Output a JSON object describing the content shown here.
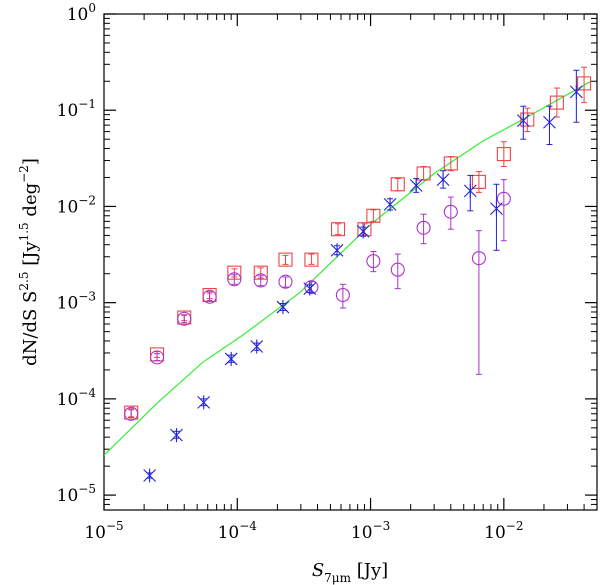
{
  "chart_data": {
    "type": "scatter",
    "title": "",
    "xlabel": {
      "main": "S",
      "sub": "7μm",
      "unit": "[Jy]"
    },
    "ylabel": {
      "p1": "dN/dS  S",
      "exp1": "2.5",
      "p2": "  [Jy",
      "exp2": "1.5",
      "p3": " deg",
      "exp3": "−2",
      "p4": "]"
    },
    "xscale": "log",
    "yscale": "log",
    "xlim": [
      1e-05,
      0.05
    ],
    "ylim": [
      7e-06,
      1.0
    ],
    "x_ticks": [
      {
        "value": 1e-05,
        "base": "10",
        "exp": "−5"
      },
      {
        "value": 0.0001,
        "base": "10",
        "exp": "−4"
      },
      {
        "value": 0.001,
        "base": "10",
        "exp": "−3"
      },
      {
        "value": 0.01,
        "base": "10",
        "exp": "−2"
      }
    ],
    "y_ticks": [
      {
        "value": 1e-05,
        "base": "10",
        "exp": "−5"
      },
      {
        "value": 0.0001,
        "base": "10",
        "exp": "−4"
      },
      {
        "value": 0.001,
        "base": "10",
        "exp": "−3"
      },
      {
        "value": 0.01,
        "base": "10",
        "exp": "−2"
      },
      {
        "value": 0.1,
        "base": "10",
        "exp": "−1"
      },
      {
        "value": 1,
        "base": "10",
        "exp": "0"
      }
    ],
    "series": [
      {
        "name": "model",
        "style": "line",
        "color": "#33ee33",
        "points": [
          {
            "x": 1e-05,
            "y": 2.6e-05
          },
          {
            "x": 2.5e-05,
            "y": 9e-05
          },
          {
            "x": 5.5e-05,
            "y": 0.00024
          },
          {
            "x": 0.00011,
            "y": 0.00046
          },
          {
            "x": 0.0003,
            "y": 0.0013
          },
          {
            "x": 0.001,
            "y": 0.0065
          },
          {
            "x": 0.003,
            "y": 0.022
          },
          {
            "x": 0.007,
            "y": 0.048
          },
          {
            "x": 0.015,
            "y": 0.085
          },
          {
            "x": 0.045,
            "y": 0.2
          }
        ]
      },
      {
        "name": "squares",
        "style": "square",
        "color": "#ee4444",
        "points": [
          {
            "x": 1.6e-05,
            "y": 7.2e-05,
            "lo": 6.5e-05,
            "hi": 7.9e-05
          },
          {
            "x": 2.5e-05,
            "y": 0.00029,
            "lo": 0.00027,
            "hi": 0.00031
          },
          {
            "x": 4e-05,
            "y": 0.0007,
            "lo": 0.00065,
            "hi": 0.00075
          },
          {
            "x": 6.2e-05,
            "y": 0.0012,
            "lo": 0.0011,
            "hi": 0.0013
          },
          {
            "x": 9.5e-05,
            "y": 0.00205,
            "lo": 0.00185,
            "hi": 0.00225
          },
          {
            "x": 0.00015,
            "y": 0.00205,
            "lo": 0.0018,
            "hi": 0.0023
          },
          {
            "x": 0.00023,
            "y": 0.0028,
            "lo": 0.0025,
            "hi": 0.0031
          },
          {
            "x": 0.00036,
            "y": 0.0028,
            "lo": 0.0025,
            "hi": 0.0032
          },
          {
            "x": 0.00057,
            "y": 0.0058,
            "lo": 0.0051,
            "hi": 0.0066
          },
          {
            "x": 0.0009,
            "y": 0.0058,
            "lo": 0.0051,
            "hi": 0.0066
          },
          {
            "x": 0.00105,
            "y": 0.008,
            "lo": 0.007,
            "hi": 0.0092
          },
          {
            "x": 0.0016,
            "y": 0.017,
            "lo": 0.0145,
            "hi": 0.0195
          },
          {
            "x": 0.0025,
            "y": 0.022,
            "lo": 0.019,
            "hi": 0.026
          },
          {
            "x": 0.004,
            "y": 0.028,
            "lo": 0.0235,
            "hi": 0.033
          },
          {
            "x": 0.0065,
            "y": 0.018,
            "lo": 0.014,
            "hi": 0.023
          },
          {
            "x": 0.01,
            "y": 0.035,
            "lo": 0.026,
            "hi": 0.047
          },
          {
            "x": 0.015,
            "y": 0.08,
            "lo": 0.06,
            "hi": 0.105
          },
          {
            "x": 0.025,
            "y": 0.12,
            "lo": 0.085,
            "hi": 0.17
          },
          {
            "x": 0.04,
            "y": 0.19,
            "lo": 0.12,
            "hi": 0.28
          }
        ]
      },
      {
        "name": "circles",
        "style": "circle",
        "color": "#aa33cc",
        "points": [
          {
            "x": 1.6e-05,
            "y": 7e-05,
            "lo": 6.4e-05,
            "hi": 7.7e-05
          },
          {
            "x": 2.5e-05,
            "y": 0.00027,
            "lo": 0.00025,
            "hi": 0.000295
          },
          {
            "x": 4e-05,
            "y": 0.00068,
            "lo": 0.00062,
            "hi": 0.00074
          },
          {
            "x": 6.2e-05,
            "y": 0.00115,
            "lo": 0.00105,
            "hi": 0.00126
          },
          {
            "x": 9.5e-05,
            "y": 0.00175,
            "lo": 0.00155,
            "hi": 0.00195
          },
          {
            "x": 0.00015,
            "y": 0.0017,
            "lo": 0.0015,
            "hi": 0.0019
          },
          {
            "x": 0.00023,
            "y": 0.00165,
            "lo": 0.00145,
            "hi": 0.00185
          },
          {
            "x": 0.00036,
            "y": 0.00145,
            "lo": 0.00125,
            "hi": 0.00165
          },
          {
            "x": 0.00062,
            "y": 0.0012,
            "lo": 0.00088,
            "hi": 0.00155
          },
          {
            "x": 0.00105,
            "y": 0.0027,
            "lo": 0.0021,
            "hi": 0.0034
          },
          {
            "x": 0.0016,
            "y": 0.0022,
            "lo": 0.0014,
            "hi": 0.0032
          },
          {
            "x": 0.0025,
            "y": 0.006,
            "lo": 0.0041,
            "hi": 0.0083
          },
          {
            "x": 0.004,
            "y": 0.0088,
            "lo": 0.0058,
            "hi": 0.0125
          },
          {
            "x": 0.0065,
            "y": 0.0029,
            "lo": 0.00018,
            "hi": 0.0056
          },
          {
            "x": 0.01,
            "y": 0.012,
            "lo": 0.0044,
            "hi": 0.019
          }
        ]
      },
      {
        "name": "asterisks",
        "style": "asterisk",
        "color": "#2222dd",
        "points": [
          {
            "x": 2.2e-05,
            "y": 1.6e-05,
            "lo": 1.5e-05,
            "hi": 1.7e-05
          },
          {
            "x": 3.5e-05,
            "y": 4.2e-05,
            "lo": 3.9e-05,
            "hi": 4.6e-05
          },
          {
            "x": 5.6e-05,
            "y": 9.2e-05,
            "lo": 8.5e-05,
            "hi": 0.0001
          },
          {
            "x": 9e-05,
            "y": 0.00026,
            "lo": 0.00024,
            "hi": 0.000285
          },
          {
            "x": 0.00014,
            "y": 0.00035,
            "lo": 0.00032,
            "hi": 0.00038
          },
          {
            "x": 0.00022,
            "y": 0.0009,
            "lo": 0.00083,
            "hi": 0.00098
          },
          {
            "x": 0.00035,
            "y": 0.0014,
            "lo": 0.00128,
            "hi": 0.00153
          },
          {
            "x": 0.00056,
            "y": 0.0035,
            "lo": 0.00315,
            "hi": 0.0039
          },
          {
            "x": 0.00088,
            "y": 0.0055,
            "lo": 0.0049,
            "hi": 0.0061
          },
          {
            "x": 0.0014,
            "y": 0.0105,
            "lo": 0.0092,
            "hi": 0.012
          },
          {
            "x": 0.0022,
            "y": 0.0165,
            "lo": 0.014,
            "hi": 0.0195
          },
          {
            "x": 0.0035,
            "y": 0.019,
            "lo": 0.0155,
            "hi": 0.0235
          },
          {
            "x": 0.0056,
            "y": 0.0145,
            "lo": 0.009,
            "hi": 0.021
          },
          {
            "x": 0.0088,
            "y": 0.0095,
            "lo": 0.0035,
            "hi": 0.017
          },
          {
            "x": 0.014,
            "y": 0.078,
            "lo": 0.05,
            "hi": 0.11
          },
          {
            "x": 0.022,
            "y": 0.075,
            "lo": 0.044,
            "hi": 0.11
          },
          {
            "x": 0.035,
            "y": 0.155,
            "lo": 0.075,
            "hi": 0.26
          }
        ]
      }
    ]
  }
}
